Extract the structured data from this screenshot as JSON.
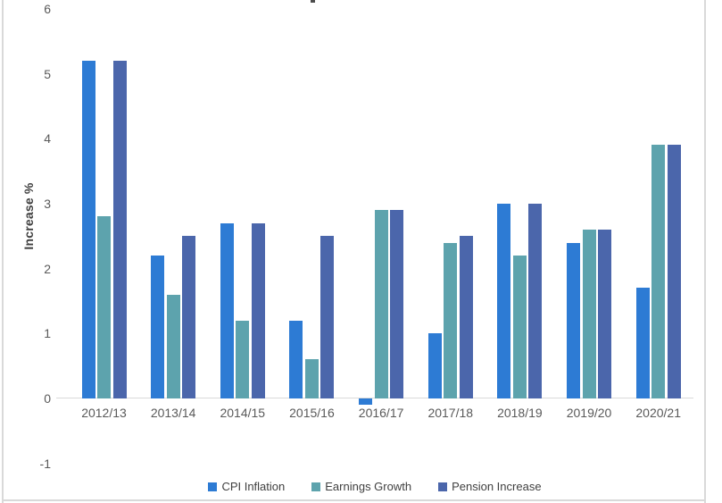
{
  "chart_data": {
    "type": "bar",
    "categories": [
      "2012/13",
      "2013/14",
      "2014/15",
      "2015/16",
      "2016/17",
      "2017/18",
      "2018/19",
      "2019/20",
      "2020/21"
    ],
    "series": [
      {
        "name": "CPI Inflation",
        "color": "#2d7bd4",
        "values": [
          5.2,
          2.2,
          2.7,
          1.2,
          -0.1,
          1.0,
          3.0,
          2.4,
          1.7
        ]
      },
      {
        "name": "Earnings Growth",
        "color": "#5da3ad",
        "values": [
          2.8,
          1.6,
          1.2,
          0.6,
          2.9,
          2.4,
          2.2,
          2.6,
          3.9
        ]
      },
      {
        "name": "Pension Increase",
        "color": "#4b66ab",
        "values": [
          5.2,
          2.5,
          2.7,
          2.5,
          2.9,
          2.5,
          3.0,
          2.6,
          3.9
        ]
      }
    ],
    "ylabel": "Increase %",
    "yticks": [
      6,
      5,
      4,
      3,
      2,
      1,
      0,
      -1
    ],
    "ylim": [
      -1,
      6
    ],
    "grid": false,
    "legend_position": "bottom"
  },
  "frame": {
    "border_color": "#d9d9d9",
    "axis_line_color": "#d9d9d9",
    "tick_label_color": "#595959"
  }
}
